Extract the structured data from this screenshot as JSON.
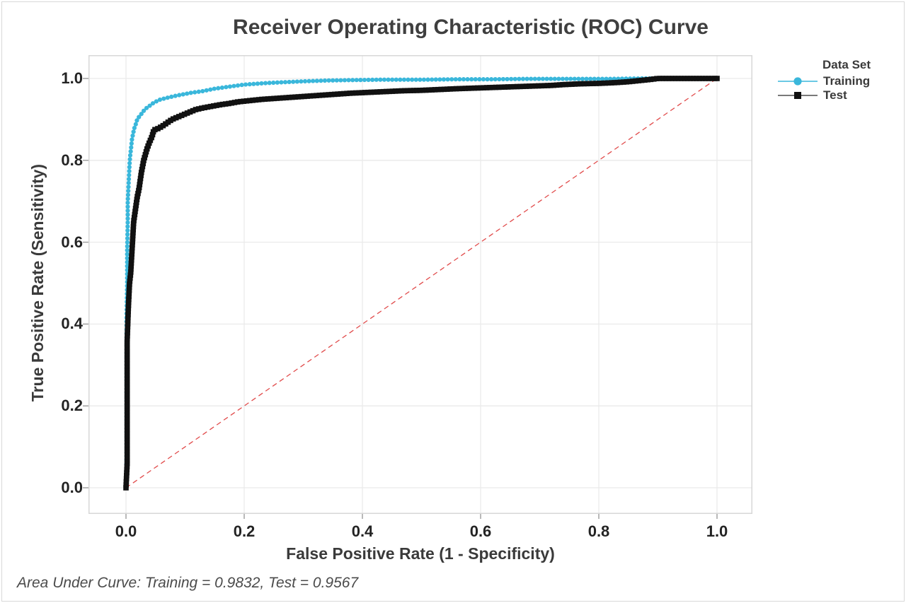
{
  "colors": {
    "background": "#ffffff",
    "window_border": "#d9d9d9",
    "grid": "#eaeaea",
    "frame": "#d7d7d7",
    "tick": "#9b9b9b",
    "training": "#3ab7db",
    "test": "#111111",
    "reference": "#e14b4b"
  },
  "chart_data": {
    "type": "line",
    "title": "Receiver Operating Characteristic (ROC) Curve",
    "xlabel": "False Positive Rate (1 - Specificity)",
    "ylabel": "True Positive Rate (Sensitivity)",
    "xlim": [
      0.0,
      1.0
    ],
    "ylim": [
      0.0,
      1.0
    ],
    "x_ticks": [
      0.0,
      0.2,
      0.4,
      0.6,
      0.8,
      1.0
    ],
    "x_tick_labels": [
      "0.0",
      "0.2",
      "0.4",
      "0.6",
      "0.8",
      "1.0"
    ],
    "y_ticks": [
      0.0,
      0.2,
      0.4,
      0.6,
      0.8,
      1.0
    ],
    "y_tick_labels": [
      "0.0",
      "0.2",
      "0.4",
      "0.6",
      "0.8",
      "1.0"
    ],
    "grid": true,
    "legend": {
      "title": "Data Set",
      "position": "right",
      "entries": [
        {
          "label": "Training",
          "marker": "circle",
          "color": "#3ab7db"
        },
        {
          "label": "Test",
          "marker": "square",
          "color": "#111111"
        }
      ]
    },
    "reference_line": {
      "x": [
        0,
        1
      ],
      "y": [
        0,
        1
      ],
      "style": "dashed",
      "color": "#e14b4b"
    },
    "annotation": "Area Under Curve: Training = 0.9832, Test = 0.9567",
    "auc": {
      "Training": 0.9832,
      "Test": 0.9567
    },
    "series": [
      {
        "name": "Training",
        "marker": "circle",
        "color": "#3ab7db",
        "points": [
          [
            0.0,
            0.0
          ],
          [
            0.001,
            0.08
          ],
          [
            0.001,
            0.2
          ],
          [
            0.001,
            0.32
          ],
          [
            0.001,
            0.42
          ],
          [
            0.002,
            0.5
          ],
          [
            0.002,
            0.58
          ],
          [
            0.003,
            0.65
          ],
          [
            0.003,
            0.7
          ],
          [
            0.004,
            0.73
          ],
          [
            0.005,
            0.76
          ],
          [
            0.006,
            0.79
          ],
          [
            0.007,
            0.81
          ],
          [
            0.009,
            0.835
          ],
          [
            0.01,
            0.85
          ],
          [
            0.012,
            0.865
          ],
          [
            0.014,
            0.878
          ],
          [
            0.017,
            0.89
          ],
          [
            0.019,
            0.9
          ],
          [
            0.023,
            0.908
          ],
          [
            0.027,
            0.915
          ],
          [
            0.03,
            0.921
          ],
          [
            0.034,
            0.927
          ],
          [
            0.039,
            0.932
          ],
          [
            0.044,
            0.938
          ],
          [
            0.05,
            0.943
          ],
          [
            0.057,
            0.948
          ],
          [
            0.065,
            0.951
          ],
          [
            0.073,
            0.954
          ],
          [
            0.082,
            0.957
          ],
          [
            0.092,
            0.96
          ],
          [
            0.1,
            0.962
          ],
          [
            0.11,
            0.965
          ],
          [
            0.12,
            0.967
          ],
          [
            0.13,
            0.969
          ],
          [
            0.14,
            0.972
          ],
          [
            0.15,
            0.975
          ],
          [
            0.165,
            0.978
          ],
          [
            0.18,
            0.981
          ],
          [
            0.2,
            0.985
          ],
          [
            0.22,
            0.987
          ],
          [
            0.24,
            0.989
          ],
          [
            0.27,
            0.991
          ],
          [
            0.3,
            0.993
          ],
          [
            0.34,
            0.995
          ],
          [
            0.38,
            0.996
          ],
          [
            0.43,
            0.997
          ],
          [
            0.5,
            0.997
          ],
          [
            0.56,
            0.998
          ],
          [
            0.62,
            0.998
          ],
          [
            0.68,
            0.999
          ],
          [
            0.75,
            0.999
          ],
          [
            0.82,
            0.999
          ],
          [
            0.87,
            1.0
          ],
          [
            1.0,
            1.0
          ]
        ]
      },
      {
        "name": "Test",
        "marker": "square",
        "color": "#111111",
        "points": [
          [
            0.0,
            0.0
          ],
          [
            0.002,
            0.06
          ],
          [
            0.002,
            0.14
          ],
          [
            0.002,
            0.22
          ],
          [
            0.002,
            0.3
          ],
          [
            0.002,
            0.36
          ],
          [
            0.003,
            0.4
          ],
          [
            0.004,
            0.44
          ],
          [
            0.005,
            0.47
          ],
          [
            0.006,
            0.5
          ],
          [
            0.008,
            0.525
          ],
          [
            0.009,
            0.55
          ],
          [
            0.01,
            0.575
          ],
          [
            0.011,
            0.6
          ],
          [
            0.012,
            0.625
          ],
          [
            0.013,
            0.65
          ],
          [
            0.015,
            0.67
          ],
          [
            0.017,
            0.69
          ],
          [
            0.019,
            0.71
          ],
          [
            0.022,
            0.73
          ],
          [
            0.024,
            0.75
          ],
          [
            0.026,
            0.77
          ],
          [
            0.028,
            0.785
          ],
          [
            0.03,
            0.8
          ],
          [
            0.033,
            0.815
          ],
          [
            0.036,
            0.83
          ],
          [
            0.04,
            0.845
          ],
          [
            0.044,
            0.858
          ],
          [
            0.046,
            0.868
          ],
          [
            0.047,
            0.874
          ],
          [
            0.055,
            0.878
          ],
          [
            0.062,
            0.884
          ],
          [
            0.07,
            0.892
          ],
          [
            0.078,
            0.9
          ],
          [
            0.088,
            0.906
          ],
          [
            0.098,
            0.912
          ],
          [
            0.108,
            0.918
          ],
          [
            0.118,
            0.924
          ],
          [
            0.13,
            0.928
          ],
          [
            0.145,
            0.932
          ],
          [
            0.16,
            0.936
          ],
          [
            0.175,
            0.939
          ],
          [
            0.19,
            0.943
          ],
          [
            0.21,
            0.946
          ],
          [
            0.23,
            0.949
          ],
          [
            0.26,
            0.952
          ],
          [
            0.29,
            0.955
          ],
          [
            0.32,
            0.958
          ],
          [
            0.35,
            0.961
          ],
          [
            0.38,
            0.964
          ],
          [
            0.41,
            0.966
          ],
          [
            0.44,
            0.968
          ],
          [
            0.47,
            0.97
          ],
          [
            0.5,
            0.971
          ],
          [
            0.53,
            0.973
          ],
          [
            0.56,
            0.975
          ],
          [
            0.6,
            0.977
          ],
          [
            0.64,
            0.979
          ],
          [
            0.68,
            0.981
          ],
          [
            0.7,
            0.982
          ],
          [
            0.72,
            0.983
          ],
          [
            0.74,
            0.985
          ],
          [
            0.77,
            0.987
          ],
          [
            0.8,
            0.988
          ],
          [
            0.83,
            0.99
          ],
          [
            0.85,
            0.992
          ],
          [
            0.87,
            0.995
          ],
          [
            0.89,
            0.998
          ],
          [
            0.9,
            1.0
          ],
          [
            1.0,
            1.0
          ]
        ]
      }
    ]
  }
}
